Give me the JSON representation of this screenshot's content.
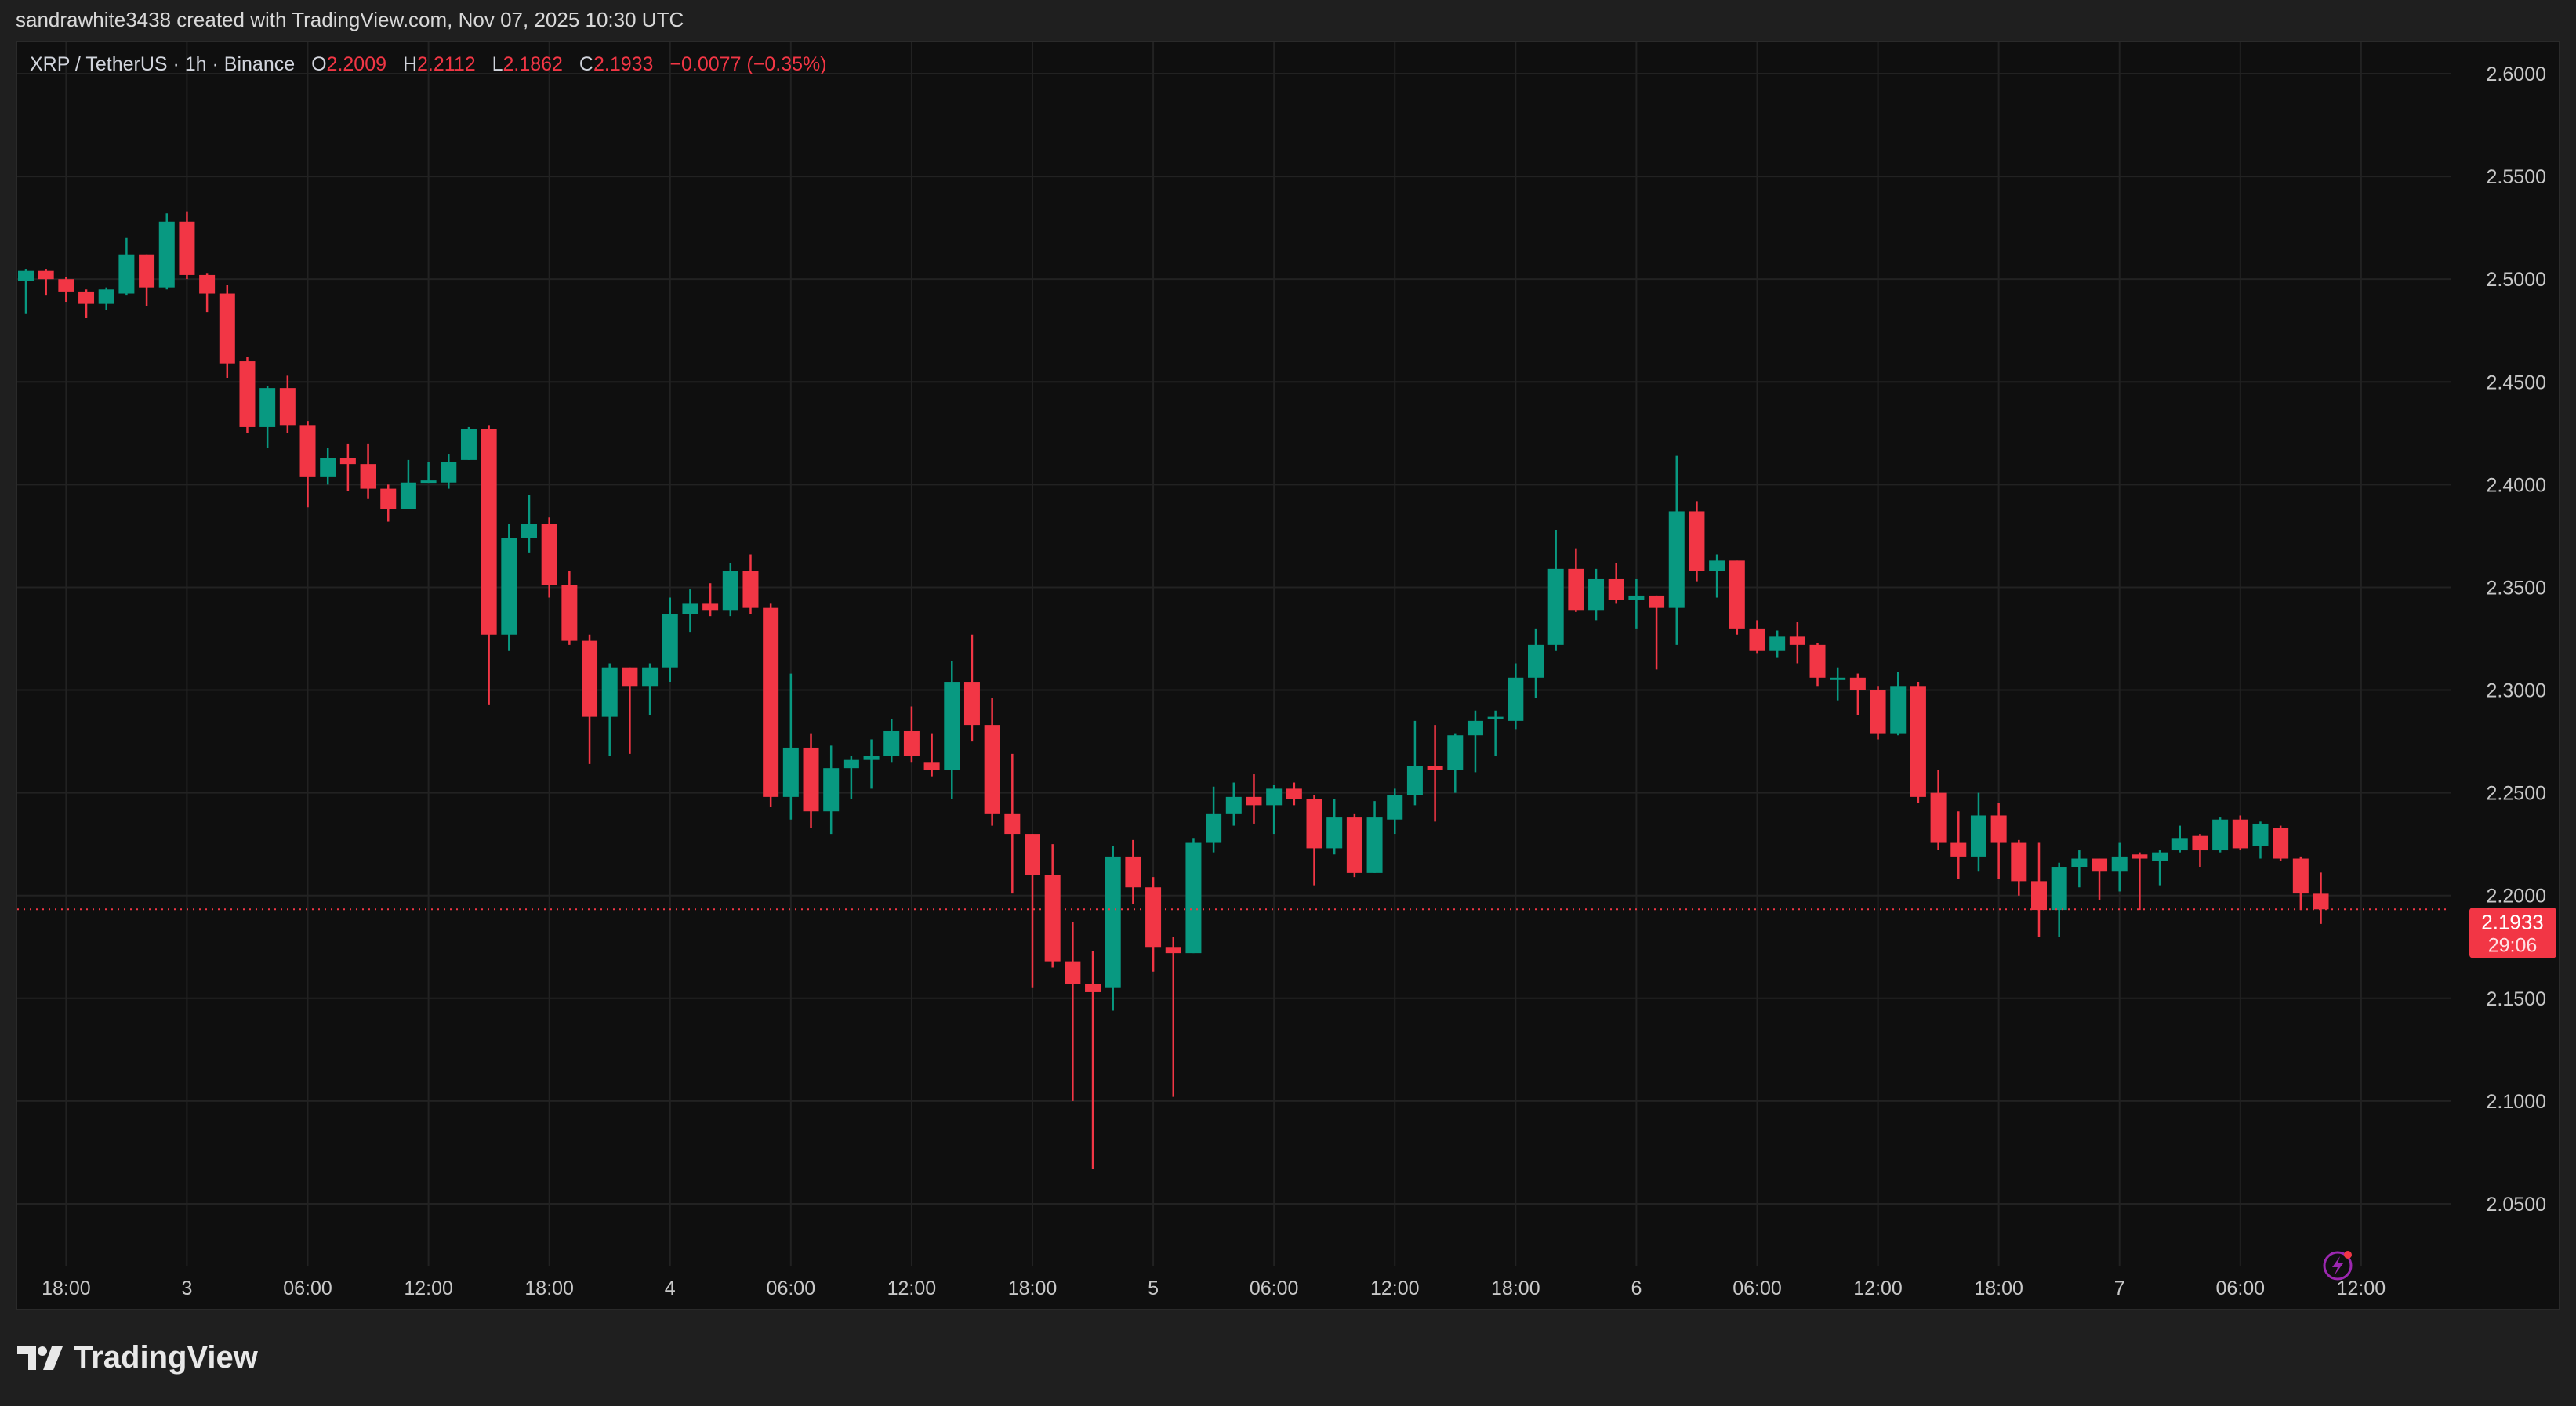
{
  "header": {
    "attribution": "sandrawhite3438 created with TradingView.com, Nov 07, 2025 10:30 UTC"
  },
  "legend": {
    "symbol": "XRP / TetherUS · 1h · Binance",
    "open_label": "O",
    "open": "2.2009",
    "high_label": "H",
    "high": "2.2112",
    "low_label": "L",
    "low": "2.1862",
    "close_label": "C",
    "close": "2.1933",
    "change": "−0.0077 (−0.35%)"
  },
  "last_price": {
    "price": "2.1933",
    "countdown": "29:06"
  },
  "icons": {
    "alert": "lightning-bolt-icon",
    "logo": "tradingview-logo-icon"
  },
  "logo": {
    "text": "TradingView"
  },
  "colors": {
    "up": "#089981",
    "down": "#f23645",
    "background": "#0f0f0f",
    "grid": "#222222",
    "alert_icon": "#9c27b0"
  },
  "chart_data": {
    "type": "candlestick",
    "interval": "1h",
    "ylim": [
      2.03,
      2.62
    ],
    "grid": true,
    "y_ticks": [
      "2.0500",
      "2.1000",
      "2.1500",
      "2.2000",
      "2.2500",
      "2.3000",
      "2.3500",
      "2.4000",
      "2.4500",
      "2.5000",
      "2.5500",
      "2.6000"
    ],
    "x_ticks": [
      "18:00",
      "3",
      "06:00",
      "12:00",
      "18:00",
      "4",
      "06:00",
      "12:00",
      "18:00",
      "5",
      "06:00",
      "12:00",
      "18:00",
      "6",
      "06:00",
      "12:00",
      "18:00",
      "7",
      "06:00",
      "12:00"
    ],
    "columns": [
      "time",
      "open",
      "high",
      "low",
      "close"
    ],
    "candles": [
      [
        "11-02 16:00",
        2.499,
        2.505,
        2.483,
        2.504
      ],
      [
        "11-02 17:00",
        2.504,
        2.505,
        2.492,
        2.5
      ],
      [
        "11-02 18:00",
        2.5,
        2.501,
        2.489,
        2.494
      ],
      [
        "11-02 19:00",
        2.494,
        2.495,
        2.481,
        2.488
      ],
      [
        "11-02 20:00",
        2.488,
        2.496,
        2.485,
        2.495
      ],
      [
        "11-02 21:00",
        2.493,
        2.52,
        2.492,
        2.512
      ],
      [
        "11-02 22:00",
        2.512,
        2.512,
        2.487,
        2.496
      ],
      [
        "11-02 23:00",
        2.496,
        2.532,
        2.495,
        2.528
      ],
      [
        "11-03 00:00",
        2.528,
        2.533,
        2.5,
        2.502
      ],
      [
        "11-03 01:00",
        2.502,
        2.503,
        2.484,
        2.493
      ],
      [
        "11-03 02:00",
        2.493,
        2.497,
        2.452,
        2.459
      ],
      [
        "11-03 03:00",
        2.46,
        2.462,
        2.425,
        2.428
      ],
      [
        "11-03 04:00",
        2.428,
        2.448,
        2.418,
        2.447
      ],
      [
        "11-03 05:00",
        2.447,
        2.453,
        2.425,
        2.429
      ],
      [
        "11-03 06:00",
        2.429,
        2.431,
        2.389,
        2.404
      ],
      [
        "11-03 07:00",
        2.404,
        2.418,
        2.4,
        2.413
      ],
      [
        "11-03 08:00",
        2.413,
        2.42,
        2.397,
        2.41
      ],
      [
        "11-03 09:00",
        2.41,
        2.42,
        2.393,
        2.398
      ],
      [
        "11-03 10:00",
        2.398,
        2.4,
        2.382,
        2.388
      ],
      [
        "11-03 11:00",
        2.388,
        2.412,
        2.388,
        2.401
      ],
      [
        "11-03 12:00",
        2.402,
        2.411,
        2.401,
        2.402
      ],
      [
        "11-03 13:00",
        2.401,
        2.415,
        2.398,
        2.411
      ],
      [
        "11-03 14:00",
        2.412,
        2.428,
        2.412,
        2.427
      ],
      [
        "11-03 15:00",
        2.427,
        2.429,
        2.293,
        2.327
      ],
      [
        "11-03 16:00",
        2.327,
        2.381,
        2.319,
        2.374
      ],
      [
        "11-03 17:00",
        2.374,
        2.395,
        2.367,
        2.381
      ],
      [
        "11-03 18:00",
        2.381,
        2.384,
        2.345,
        2.351
      ],
      [
        "11-03 19:00",
        2.351,
        2.358,
        2.322,
        2.324
      ],
      [
        "11-03 20:00",
        2.324,
        2.327,
        2.264,
        2.287
      ],
      [
        "11-03 21:00",
        2.287,
        2.313,
        2.268,
        2.311
      ],
      [
        "11-03 22:00",
        2.311,
        2.311,
        2.269,
        2.302
      ],
      [
        "11-03 23:00",
        2.302,
        2.313,
        2.288,
        2.311
      ],
      [
        "11-04 00:00",
        2.311,
        2.345,
        2.304,
        2.337
      ],
      [
        "11-04 01:00",
        2.337,
        2.349,
        2.328,
        2.342
      ],
      [
        "11-04 02:00",
        2.342,
        2.352,
        2.336,
        2.339
      ],
      [
        "11-04 03:00",
        2.339,
        2.362,
        2.336,
        2.358
      ],
      [
        "11-04 04:00",
        2.358,
        2.366,
        2.337,
        2.34
      ],
      [
        "11-04 05:00",
        2.34,
        2.342,
        2.243,
        2.248
      ],
      [
        "11-04 06:00",
        2.248,
        2.308,
        2.237,
        2.272
      ],
      [
        "11-04 07:00",
        2.272,
        2.279,
        2.233,
        2.241
      ],
      [
        "11-04 08:00",
        2.241,
        2.273,
        2.23,
        2.262
      ],
      [
        "11-04 09:00",
        2.262,
        2.268,
        2.247,
        2.266
      ],
      [
        "11-04 10:00",
        2.266,
        2.276,
        2.252,
        2.268
      ],
      [
        "11-04 11:00",
        2.268,
        2.286,
        2.265,
        2.28
      ],
      [
        "11-04 12:00",
        2.28,
        2.292,
        2.265,
        2.268
      ],
      [
        "11-04 13:00",
        2.265,
        2.279,
        2.258,
        2.261
      ],
      [
        "11-04 14:00",
        2.261,
        2.314,
        2.247,
        2.304
      ],
      [
        "11-04 15:00",
        2.304,
        2.327,
        2.275,
        2.283
      ],
      [
        "11-04 16:00",
        2.283,
        2.296,
        2.234,
        2.24
      ],
      [
        "11-04 17:00",
        2.24,
        2.269,
        2.201,
        2.23
      ],
      [
        "11-04 18:00",
        2.23,
        2.23,
        2.155,
        2.21
      ],
      [
        "11-04 19:00",
        2.21,
        2.225,
        2.165,
        2.168
      ],
      [
        "11-04 20:00",
        2.168,
        2.187,
        2.1,
        2.157
      ],
      [
        "11-04 21:00",
        2.157,
        2.173,
        2.067,
        2.153
      ],
      [
        "11-04 22:00",
        2.155,
        2.224,
        2.144,
        2.219
      ],
      [
        "11-04 23:00",
        2.219,
        2.227,
        2.196,
        2.204
      ],
      [
        "11-05 00:00",
        2.204,
        2.209,
        2.163,
        2.175
      ],
      [
        "11-05 01:00",
        2.175,
        2.18,
        2.102,
        2.172
      ],
      [
        "11-05 02:00",
        2.172,
        2.228,
        2.172,
        2.226
      ],
      [
        "11-05 03:00",
        2.226,
        2.253,
        2.221,
        2.24
      ],
      [
        "11-05 04:00",
        2.24,
        2.255,
        2.234,
        2.248
      ],
      [
        "11-05 05:00",
        2.248,
        2.259,
        2.235,
        2.244
      ],
      [
        "11-05 06:00",
        2.244,
        2.254,
        2.23,
        2.252
      ],
      [
        "11-05 07:00",
        2.252,
        2.255,
        2.244,
        2.247
      ],
      [
        "11-05 08:00",
        2.247,
        2.249,
        2.205,
        2.223
      ],
      [
        "11-05 09:00",
        2.223,
        2.247,
        2.22,
        2.238
      ],
      [
        "11-05 10:00",
        2.238,
        2.24,
        2.209,
        2.211
      ],
      [
        "11-05 11:00",
        2.211,
        2.246,
        2.211,
        2.238
      ],
      [
        "11-05 12:00",
        2.237,
        2.252,
        2.23,
        2.249
      ],
      [
        "11-05 13:00",
        2.249,
        2.285,
        2.244,
        2.263
      ],
      [
        "11-05 14:00",
        2.263,
        2.283,
        2.236,
        2.261
      ],
      [
        "11-05 15:00",
        2.261,
        2.279,
        2.25,
        2.278
      ],
      [
        "11-05 16:00",
        2.278,
        2.29,
        2.26,
        2.285
      ],
      [
        "11-05 17:00",
        2.287,
        2.29,
        2.268,
        2.287
      ],
      [
        "11-05 18:00",
        2.285,
        2.313,
        2.281,
        2.306
      ],
      [
        "11-05 19:00",
        2.306,
        2.33,
        2.296,
        2.322
      ],
      [
        "11-05 20:00",
        2.322,
        2.378,
        2.319,
        2.359
      ],
      [
        "11-05 21:00",
        2.359,
        2.369,
        2.338,
        2.339
      ],
      [
        "11-05 22:00",
        2.339,
        2.359,
        2.334,
        2.354
      ],
      [
        "11-05 23:00",
        2.354,
        2.362,
        2.342,
        2.344
      ],
      [
        "11-06 00:00",
        2.344,
        2.354,
        2.33,
        2.346
      ],
      [
        "11-06 01:00",
        2.346,
        2.346,
        2.31,
        2.34
      ],
      [
        "11-06 02:00",
        2.34,
        2.414,
        2.322,
        2.387
      ],
      [
        "11-06 03:00",
        2.387,
        2.392,
        2.353,
        2.358
      ],
      [
        "11-06 04:00",
        2.358,
        2.366,
        2.345,
        2.363
      ],
      [
        "11-06 05:00",
        2.363,
        2.363,
        2.327,
        2.33
      ],
      [
        "11-06 06:00",
        2.33,
        2.334,
        2.318,
        2.319
      ],
      [
        "11-06 07:00",
        2.319,
        2.329,
        2.316,
        2.326
      ],
      [
        "11-06 08:00",
        2.326,
        2.333,
        2.313,
        2.322
      ],
      [
        "11-06 09:00",
        2.322,
        2.323,
        2.302,
        2.306
      ],
      [
        "11-06 10:00",
        2.306,
        2.311,
        2.295,
        2.306
      ],
      [
        "11-06 11:00",
        2.306,
        2.308,
        2.288,
        2.3
      ],
      [
        "11-06 12:00",
        2.3,
        2.302,
        2.276,
        2.279
      ],
      [
        "11-06 13:00",
        2.279,
        2.309,
        2.278,
        2.302
      ],
      [
        "11-06 14:00",
        2.302,
        2.304,
        2.245,
        2.248
      ],
      [
        "11-06 15:00",
        2.25,
        2.261,
        2.222,
        2.226
      ],
      [
        "11-06 16:00",
        2.226,
        2.241,
        2.208,
        2.219
      ],
      [
        "11-06 17:00",
        2.219,
        2.25,
        2.212,
        2.239
      ],
      [
        "11-06 18:00",
        2.239,
        2.245,
        2.208,
        2.226
      ],
      [
        "11-06 19:00",
        2.226,
        2.227,
        2.2,
        2.207
      ],
      [
        "11-06 20:00",
        2.207,
        2.226,
        2.18,
        2.193
      ],
      [
        "11-06 21:00",
        2.193,
        2.216,
        2.18,
        2.214
      ],
      [
        "11-06 22:00",
        2.214,
        2.222,
        2.204,
        2.218
      ],
      [
        "11-06 23:00",
        2.218,
        2.218,
        2.198,
        2.212
      ],
      [
        "11-07 00:00",
        2.212,
        2.226,
        2.202,
        2.219
      ],
      [
        "11-07 01:00",
        2.22,
        2.221,
        2.193,
        2.218
      ],
      [
        "11-07 02:00",
        2.217,
        2.222,
        2.205,
        2.221
      ],
      [
        "11-07 03:00",
        2.222,
        2.234,
        2.221,
        2.228
      ],
      [
        "11-07 04:00",
        2.229,
        2.23,
        2.214,
        2.222
      ],
      [
        "11-07 05:00",
        2.222,
        2.238,
        2.221,
        2.237
      ],
      [
        "11-07 06:00",
        2.237,
        2.239,
        2.222,
        2.223
      ],
      [
        "11-07 07:00",
        2.224,
        2.236,
        2.218,
        2.235
      ],
      [
        "11-07 08:00",
        2.233,
        2.234,
        2.217,
        2.218
      ],
      [
        "11-07 09:00",
        2.218,
        2.219,
        2.193,
        2.201
      ],
      [
        "11-07 10:00",
        2.2009,
        2.2112,
        2.1862,
        2.1933
      ]
    ]
  }
}
